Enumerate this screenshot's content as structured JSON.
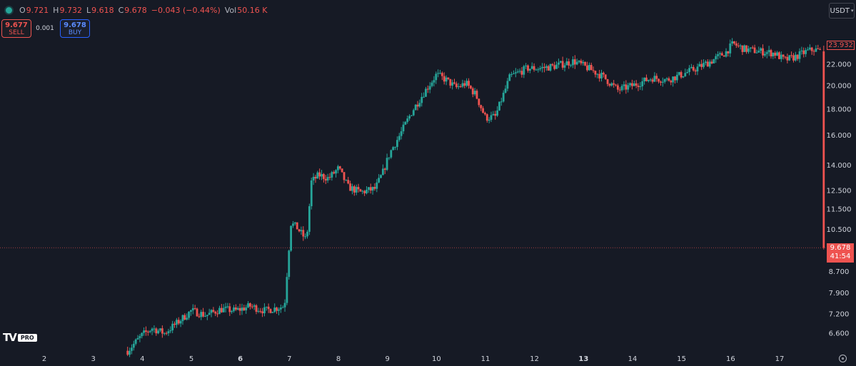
{
  "legend": {
    "open_label": "O",
    "open": "9.721",
    "high_label": "H",
    "high": "9.732",
    "low_label": "L",
    "low": "9.618",
    "close_label": "C",
    "close": "9.678",
    "change": "−0.043 (−0.44%)",
    "vol_label": "Vol",
    "vol": "50.16 K"
  },
  "trade": {
    "sell_price": "9.677",
    "sell_label": "SELL",
    "spread": "0.001",
    "buy_price": "9.678",
    "buy_label": "BUY"
  },
  "currency": "USDT",
  "logo": {
    "mark": "TV",
    "badge": "PRO"
  },
  "price_labels": {
    "last_price": "9.678",
    "countdown": "41:54",
    "high_marker": "23.932"
  },
  "colors": {
    "up": "#26a69a",
    "down": "#ef5350",
    "background": "#161a25",
    "axis_text": "#d1d4dc",
    "last_line": "#ef5350"
  },
  "chart_data": {
    "type": "candlestick",
    "scale": "log",
    "y_ticks": [
      "6.600",
      "7.200",
      "7.900",
      "8.700",
      "10.500",
      "11.500",
      "12.500",
      "14.000",
      "16.000",
      "18.000",
      "20.000",
      "22.000"
    ],
    "x_ticks": [
      {
        "day": 2,
        "label": "2",
        "bold": false
      },
      {
        "day": 3,
        "label": "3",
        "bold": false
      },
      {
        "day": 4,
        "label": "4",
        "bold": false
      },
      {
        "day": 5,
        "label": "5",
        "bold": false
      },
      {
        "day": 6,
        "label": "6",
        "bold": true
      },
      {
        "day": 7,
        "label": "7",
        "bold": false
      },
      {
        "day": 8,
        "label": "8",
        "bold": false
      },
      {
        "day": 9,
        "label": "9",
        "bold": false
      },
      {
        "day": 10,
        "label": "10",
        "bold": false
      },
      {
        "day": 11,
        "label": "11",
        "bold": false
      },
      {
        "day": 12,
        "label": "12",
        "bold": false
      },
      {
        "day": 13,
        "label": "13",
        "bold": true
      },
      {
        "day": 14,
        "label": "14",
        "bold": false
      },
      {
        "day": 15,
        "label": "15",
        "bold": false
      },
      {
        "day": 16,
        "label": "16",
        "bold": false
      },
      {
        "day": 17,
        "label": "17",
        "bold": false
      }
    ],
    "y_range": [
      6.0,
      26.0
    ],
    "x_range_days": [
      1.3,
      17.95
    ],
    "last_price": 9.678,
    "close_path": [
      [
        3.7,
        6.1
      ],
      [
        4.0,
        6.55
      ],
      [
        4.2,
        6.75
      ],
      [
        4.45,
        6.6
      ],
      [
        4.7,
        6.9
      ],
      [
        5.0,
        7.3
      ],
      [
        5.3,
        7.15
      ],
      [
        5.6,
        7.35
      ],
      [
        5.9,
        7.3
      ],
      [
        6.2,
        7.45
      ],
      [
        6.5,
        7.3
      ],
      [
        6.9,
        7.45
      ],
      [
        7.03,
        10.8
      ],
      [
        7.15,
        10.6
      ],
      [
        7.35,
        10.0
      ],
      [
        7.45,
        13.0
      ],
      [
        7.6,
        13.4
      ],
      [
        7.8,
        13.2
      ],
      [
        8.0,
        13.8
      ],
      [
        8.2,
        12.7
      ],
      [
        8.45,
        12.4
      ],
      [
        8.75,
        12.6
      ],
      [
        8.9,
        13.5
      ],
      [
        9.05,
        14.8
      ],
      [
        9.25,
        16.0
      ],
      [
        9.5,
        17.8
      ],
      [
        9.75,
        19.4
      ],
      [
        10.0,
        21.0
      ],
      [
        10.2,
        20.5
      ],
      [
        10.4,
        19.8
      ],
      [
        10.6,
        20.2
      ],
      [
        10.8,
        19.2
      ],
      [
        11.0,
        17.3
      ],
      [
        11.2,
        17.4
      ],
      [
        11.5,
        20.8
      ],
      [
        11.85,
        21.6
      ],
      [
        12.1,
        21.6
      ],
      [
        12.4,
        21.8
      ],
      [
        12.8,
        22.3
      ],
      [
        13.1,
        21.6
      ],
      [
        13.4,
        20.8
      ],
      [
        13.7,
        19.6
      ],
      [
        14.0,
        20.0
      ],
      [
        14.4,
        20.7
      ],
      [
        14.7,
        20.5
      ],
      [
        15.0,
        21.0
      ],
      [
        15.3,
        21.6
      ],
      [
        15.6,
        22.3
      ],
      [
        15.9,
        23.2
      ],
      [
        16.05,
        24.1
      ],
      [
        16.3,
        23.5
      ],
      [
        16.6,
        23.3
      ],
      [
        16.9,
        23.1
      ],
      [
        17.1,
        22.4
      ],
      [
        17.3,
        22.7
      ],
      [
        17.55,
        23.3
      ],
      [
        17.7,
        23.5
      ],
      [
        17.85,
        23.3
      ],
      [
        17.9,
        9.68
      ]
    ]
  }
}
